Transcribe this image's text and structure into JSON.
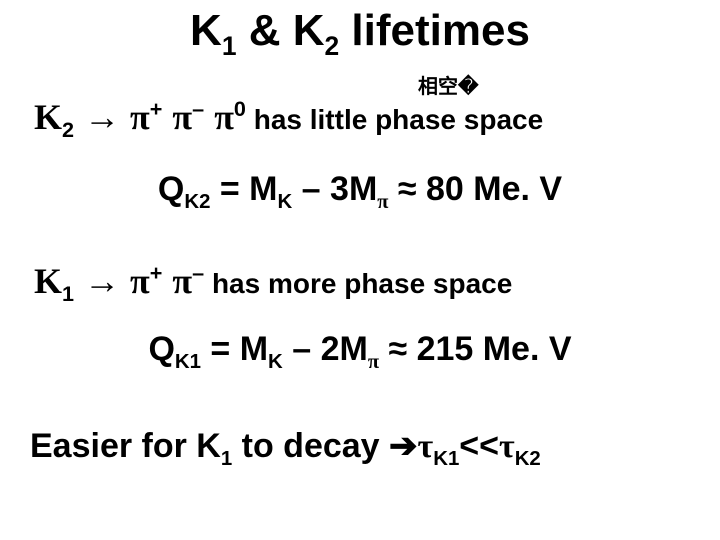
{
  "colors": {
    "background": "#ffffff",
    "text": "#000000"
  },
  "fonts": {
    "main": "Comic Sans MS",
    "symbol": "Symbol / Times New Roman",
    "cjk": "SimSun",
    "title_size_pt": 44,
    "body_size_pt": 36,
    "eq_size_pt": 34,
    "annot_size_pt": 20,
    "weight": "bold"
  },
  "title": {
    "k1": "K",
    "k1_sub": "1",
    "amp": " & ",
    "k2": "K",
    "k2_sub": "2",
    "rest": " lifetimes"
  },
  "annotation": "相空�",
  "line2": {
    "k": "K",
    "k_sub": "2",
    "arrow": " → ",
    "pi1": "π",
    "pi1_sup": "+",
    "sp1": " ",
    "pi2": "π",
    "pi2_sup": "–",
    "sp2": " ",
    "pi3": "π",
    "pi3_sup": "0",
    "rest": " has little phase space"
  },
  "eq1": {
    "q": "Q",
    "q_sub": "K2",
    "eq": " = M",
    "mk_sub": "K",
    "minus": " – 3M",
    "mpi_sub": "π",
    "approx": " ≈ ",
    "val": "80 Me. V"
  },
  "line4": {
    "k": "K",
    "k_sub": "1",
    "arrow": " → ",
    "pi1": "π",
    "pi1_sup": "+",
    "sp1": " ",
    "pi2": "π",
    "pi2_sup": "–",
    "rest": "  has more phase space"
  },
  "eq2": {
    "q": "Q",
    "q_sub": "K1",
    "eq": " = M",
    "mk_sub": "K",
    "minus": " – 2M",
    "mpi_sub": "π",
    "approx": " ≈ ",
    "val": "215 Me. V"
  },
  "line6": {
    "txt": "Easier for K",
    "k_sub": "1",
    "txt2": " to decay   ",
    "arrow": "➔",
    "tau1": "τ",
    "tau1_sub": "K1",
    "lt": "<<",
    "tau2": "τ",
    "tau2_sub": "K2"
  }
}
